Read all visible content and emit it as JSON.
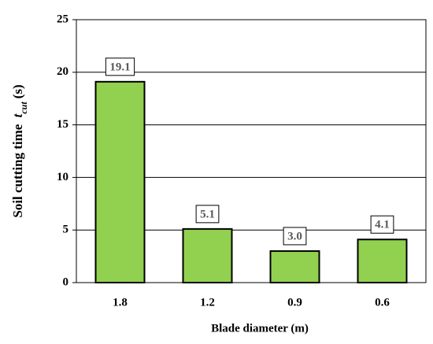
{
  "chart_data": {
    "type": "bar",
    "xlabel": "Blade diameter (m)",
    "ylabel": {
      "text": "Soil cutting time",
      "symbol": "t",
      "subscript": "cut",
      "unit": "(s)"
    },
    "categories": [
      "1.8",
      "1.2",
      "0.9",
      "0.6"
    ],
    "values": [
      19.1,
      5.1,
      3.0,
      4.1
    ],
    "value_labels": [
      "19.1",
      "5.1",
      "3.0",
      "4.1"
    ],
    "color": "#92d050",
    "ylim": [
      0,
      25
    ],
    "yticks": [
      0,
      5,
      10,
      15,
      20,
      25
    ],
    "grid": true
  }
}
